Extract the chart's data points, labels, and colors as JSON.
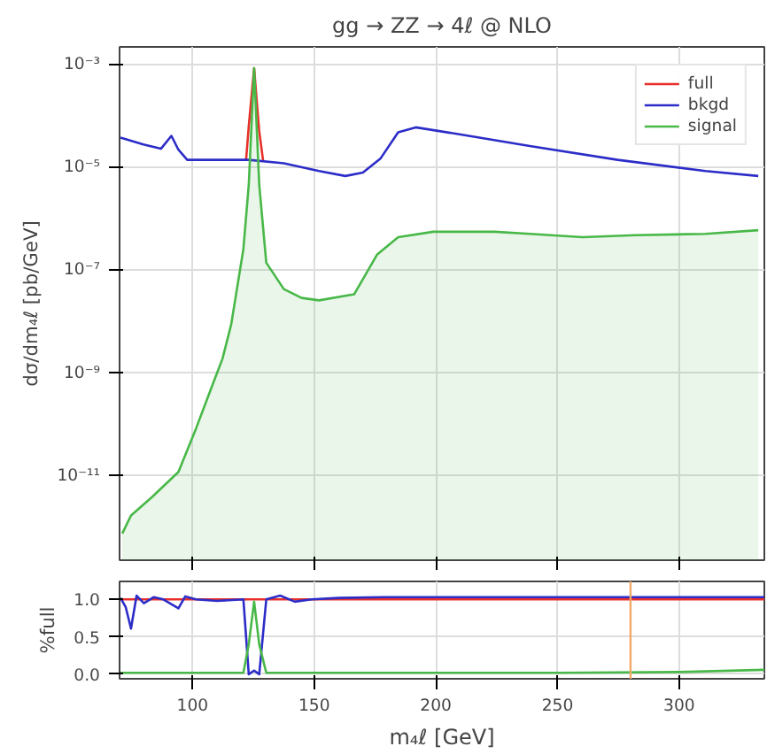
{
  "chart_data": [
    {
      "type": "line",
      "title": "gg → ZZ → 4ℓ @ NLO",
      "ylabel": "dσ/dm₄ℓ [pb/GeV]",
      "log": "y",
      "xlim": [
        70,
        335
      ],
      "ylim": [
        2.3e-13,
        0.0022
      ],
      "yticks": [
        {
          "value": 1e-11,
          "label": "10⁻¹¹"
        },
        {
          "value": 1e-09,
          "label": "10⁻⁹"
        },
        {
          "value": 1e-07,
          "label": "10⁻⁷"
        },
        {
          "value": 1e-05,
          "label": "10⁻⁵"
        },
        {
          "value": 0.001,
          "label": "10⁻³"
        }
      ],
      "xticks": [
        100,
        150,
        200,
        250,
        300
      ],
      "tick_labels": "y",
      "grid": true,
      "legend": "top right",
      "series": [
        {
          "name": "full",
          "color": "#e8302a",
          "x": [
            122.0,
            123.1,
            125.3,
            127.4,
            129.0
          ],
          "values": [
            1.4e-05,
            6.3e-05,
            0.00085,
            5e-05,
            1.35e-05
          ]
        },
        {
          "name": "bkgd",
          "color": "#2c2cc8",
          "x": [
            70.4,
            79.8,
            87.0,
            91.3,
            94.2,
            97.8,
            108.7,
            123.1,
            137.5,
            152.0,
            162.8,
            170.0,
            177.3,
            184.5,
            191.7,
            209.7,
            238.6,
            274.7,
            310.8,
            332.5
          ],
          "values": [
            3.8e-05,
            2.8e-05,
            2.3e-05,
            4.1e-05,
            2.2e-05,
            1.4e-05,
            1.4e-05,
            1.4e-05,
            1.2e-05,
            8.5e-06,
            6.8e-06,
            7.9e-06,
            1.5e-05,
            4.8e-05,
            6e-05,
            4.4e-05,
            2.6e-05,
            1.4e-05,
            8.5e-06,
            6.8e-06
          ]
        },
        {
          "name": "signal",
          "type": "area",
          "color": "#48b848",
          "x": [
            71.1,
            74.7,
            83.4,
            94.2,
            101.4,
            108.7,
            112.3,
            115.9,
            120.9,
            123.1,
            125.3,
            127.4,
            130.3,
            137.5,
            144.8,
            152.0,
            166.4,
            175.8,
            184.5,
            198.9,
            224.2,
            238.6,
            260.3,
            281.9,
            310.8,
            332.5
          ],
          "values": [
            7.6e-13,
            1.7e-12,
            3.9e-12,
            1.2e-11,
            8.3e-11,
            6.8e-10,
            1.9e-09,
            8.9e-09,
            2.6e-07,
            4.6e-06,
            0.00085,
            4.6e-06,
            1.4e-07,
            4.3e-08,
            2.9e-08,
            2.6e-08,
            3.4e-08,
            2e-07,
            4.4e-07,
            5.6e-07,
            5.6e-07,
            5.1e-07,
            4.4e-07,
            4.8e-07,
            5.1e-07,
            6e-07
          ]
        }
      ]
    },
    {
      "type": "line",
      "xlabel": "m₄ℓ [GeV]",
      "ylabel": "%full",
      "xlim": [
        70,
        335
      ],
      "ylim": [
        -0.06,
        1.24
      ],
      "xticks": [
        100,
        150,
        200,
        250,
        300
      ],
      "yticks": [
        {
          "value": 0,
          "label": "0.0"
        },
        {
          "value": 0.5,
          "label": "0.5"
        },
        {
          "value": 1,
          "label": "1.0"
        }
      ],
      "grid": true,
      "ref_lines": [
        {
          "axis": "x",
          "value": 280,
          "color": "#f0a868"
        }
      ],
      "series": [
        {
          "color": "#e8302a",
          "x": [
            70,
            335
          ],
          "values": [
            1,
            1
          ]
        },
        {
          "color": "#2c2cc8",
          "x": [
            70.4,
            72.5,
            74.7,
            77,
            80,
            84,
            88,
            94.2,
            97,
            101.4,
            110,
            120.9,
            123.1,
            125.3,
            127.4,
            130.3,
            136,
            142,
            149,
            160,
            178.7,
            220,
            260,
            300,
            335
          ],
          "values": [
            1.02,
            0.9,
            0.61,
            1.05,
            0.95,
            1.03,
            1.0,
            0.88,
            1.04,
            1.0,
            0.98,
            1.0,
            0.0,
            0.05,
            0.0,
            1.0,
            1.05,
            0.97,
            1.0,
            1.02,
            1.03,
            1.03,
            1.03,
            1.03,
            1.03
          ]
        },
        {
          "color": "#48b848",
          "x": [
            70.4,
            120.9,
            123.1,
            125.3,
            127.4,
            130.3,
            250,
            300,
            335
          ],
          "values": [
            0.02,
            0.02,
            0.4,
            0.97,
            0.4,
            0.02,
            0.02,
            0.03,
            0.06
          ]
        }
      ]
    }
  ]
}
